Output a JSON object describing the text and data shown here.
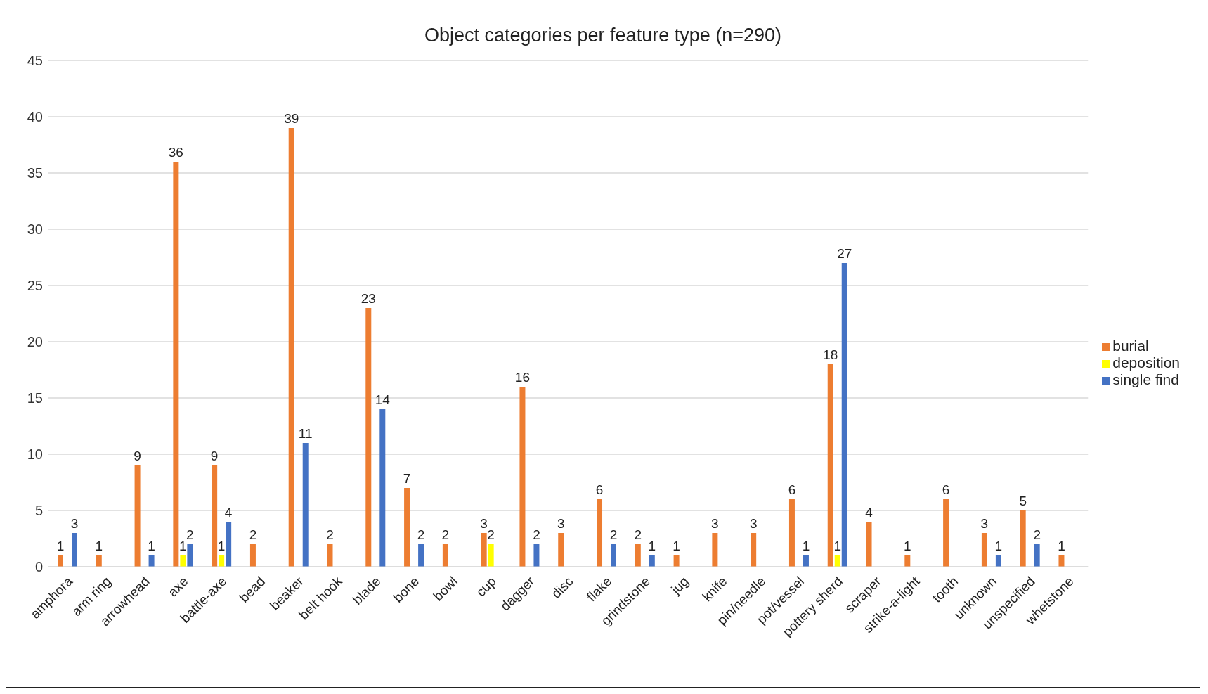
{
  "chart_data": {
    "type": "bar",
    "title": "Object categories per feature type (n=290)",
    "categories": [
      "amphora",
      "arm ring",
      "arrowhead",
      "axe",
      "battle-axe",
      "bead",
      "beaker",
      "belt hook",
      "blade",
      "bone",
      "bowl",
      "cup",
      "dagger",
      "disc",
      "flake",
      "grindstone",
      "jug",
      "knife",
      "pin/needle",
      "pot/vessel",
      "pottery sherd",
      "scraper",
      "strike-a-light",
      "tooth",
      "unknown",
      "unspecified",
      "whetstone"
    ],
    "series": [
      {
        "name": "burial",
        "color": "#ed7d31",
        "values": [
          1,
          1,
          9,
          36,
          9,
          2,
          39,
          2,
          23,
          7,
          2,
          3,
          16,
          3,
          6,
          2,
          1,
          3,
          3,
          6,
          18,
          4,
          1,
          6,
          3,
          5,
          1
        ]
      },
      {
        "name": "deposition",
        "color": "#ffff00",
        "values": [
          null,
          null,
          null,
          1,
          1,
          null,
          null,
          null,
          null,
          null,
          null,
          2,
          null,
          null,
          null,
          null,
          null,
          null,
          null,
          null,
          1,
          null,
          null,
          null,
          null,
          null,
          null
        ]
      },
      {
        "name": "single find",
        "color": "#4472c4",
        "values": [
          3,
          null,
          1,
          2,
          4,
          null,
          11,
          null,
          14,
          2,
          null,
          null,
          2,
          null,
          2,
          1,
          null,
          null,
          null,
          1,
          27,
          null,
          null,
          null,
          1,
          2,
          null
        ]
      }
    ],
    "ylim": [
      0,
      45
    ],
    "yticks": [
      0,
      5,
      10,
      15,
      20,
      25,
      30,
      35,
      40,
      45
    ],
    "grid": "y",
    "legend": "right",
    "data_labels": true
  }
}
